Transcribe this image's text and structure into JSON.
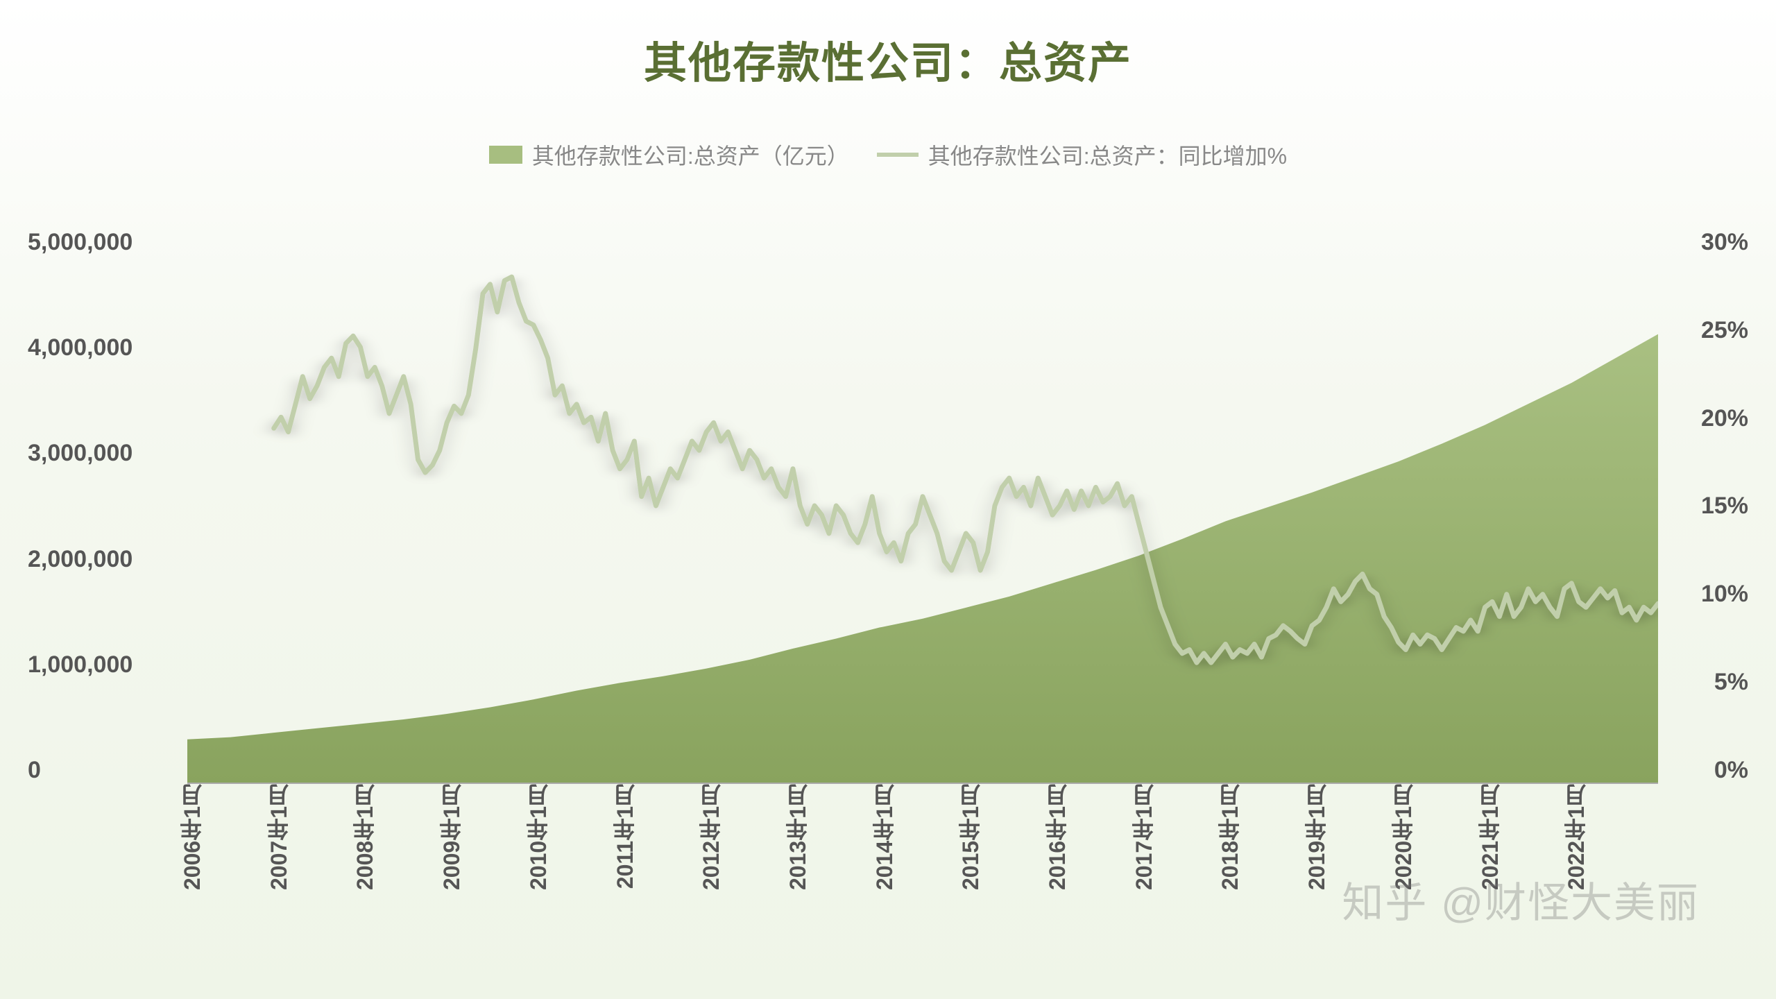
{
  "title": "其他存款性公司：总资产",
  "title_fontsize": 62,
  "legend": {
    "area_label": "其他存款性公司:总资产（亿元）",
    "line_label": "其他存款性公司:总资产：同比增加%",
    "fontsize": 32
  },
  "watermark": "知乎 @财怪大美丽",
  "chart": {
    "type": "area+line",
    "background_gradient_top": "#ffffff",
    "background_gradient_bottom": "#eff5e8",
    "area_color": "#93ae6a",
    "area_gradient_top": "#a9c082",
    "area_gradient_bottom": "#89a35e",
    "line_color": "#c1cfab",
    "line_width": 7,
    "tick_color": "#555555",
    "tick_fontsize": 34,
    "x_tick_fontsize": 32,
    "x_labels": [
      "2006年1月",
      "2007年1月",
      "2008年1月",
      "2009年1月",
      "2010年1月",
      "2011年1月",
      "2012年1月",
      "2013年1月",
      "2014年1月",
      "2015年1月",
      "2016年1月",
      "2017年1月",
      "2018年1月",
      "2019年1月",
      "2020年1月",
      "2021年1月",
      "2022年1月"
    ],
    "x_domain": [
      0,
      204
    ],
    "y_left": {
      "min": 0,
      "max": 5000000,
      "ticks": [
        "5,000,000",
        "4,000,000",
        "3,000,000",
        "2,000,000",
        "1,000,000",
        "0"
      ]
    },
    "y_right": {
      "min": 0,
      "max": 30,
      "ticks": [
        "30%",
        "25%",
        "20%",
        "15%",
        "10%",
        "5%",
        "0%"
      ]
    },
    "area_series": [
      [
        0,
        390000
      ],
      [
        6,
        410000
      ],
      [
        12,
        450000
      ],
      [
        18,
        490000
      ],
      [
        24,
        530000
      ],
      [
        30,
        570000
      ],
      [
        36,
        620000
      ],
      [
        42,
        680000
      ],
      [
        48,
        750000
      ],
      [
        54,
        830000
      ],
      [
        60,
        900000
      ],
      [
        66,
        960000
      ],
      [
        72,
        1030000
      ],
      [
        78,
        1110000
      ],
      [
        84,
        1210000
      ],
      [
        90,
        1300000
      ],
      [
        96,
        1400000
      ],
      [
        102,
        1480000
      ],
      [
        108,
        1580000
      ],
      [
        114,
        1680000
      ],
      [
        120,
        1800000
      ],
      [
        126,
        1920000
      ],
      [
        132,
        2050000
      ],
      [
        138,
        2200000
      ],
      [
        141,
        2280000
      ],
      [
        144,
        2360000
      ],
      [
        150,
        2490000
      ],
      [
        156,
        2620000
      ],
      [
        162,
        2760000
      ],
      [
        168,
        2900000
      ],
      [
        174,
        3060000
      ],
      [
        180,
        3230000
      ],
      [
        186,
        3420000
      ],
      [
        192,
        3610000
      ],
      [
        198,
        3830000
      ],
      [
        204,
        4050000
      ]
    ],
    "line_series": [
      [
        12,
        19.2
      ],
      [
        13,
        19.8
      ],
      [
        14,
        19.0
      ],
      [
        15,
        20.5
      ],
      [
        16,
        22.0
      ],
      [
        17,
        20.8
      ],
      [
        18,
        21.5
      ],
      [
        19,
        22.5
      ],
      [
        20,
        23.0
      ],
      [
        21,
        22.0
      ],
      [
        22,
        23.8
      ],
      [
        23,
        24.2
      ],
      [
        24,
        23.6
      ],
      [
        25,
        22.0
      ],
      [
        26,
        22.5
      ],
      [
        27,
        21.5
      ],
      [
        28,
        20.0
      ],
      [
        29,
        21.0
      ],
      [
        30,
        22.0
      ],
      [
        31,
        20.5
      ],
      [
        32,
        17.5
      ],
      [
        33,
        16.8
      ],
      [
        34,
        17.2
      ],
      [
        35,
        18.0
      ],
      [
        36,
        19.5
      ],
      [
        37,
        20.4
      ],
      [
        38,
        20.0
      ],
      [
        39,
        21.0
      ],
      [
        40,
        23.5
      ],
      [
        41,
        26.5
      ],
      [
        42,
        27.0
      ],
      [
        43,
        25.5
      ],
      [
        44,
        27.2
      ],
      [
        45,
        27.4
      ],
      [
        46,
        26.0
      ],
      [
        47,
        25.0
      ],
      [
        48,
        24.8
      ],
      [
        49,
        24.0
      ],
      [
        50,
        23.0
      ],
      [
        51,
        21.0
      ],
      [
        52,
        21.5
      ],
      [
        53,
        20.0
      ],
      [
        54,
        20.5
      ],
      [
        55,
        19.5
      ],
      [
        56,
        19.8
      ],
      [
        57,
        18.5
      ],
      [
        58,
        20.0
      ],
      [
        59,
        18.0
      ],
      [
        60,
        17.0
      ],
      [
        61,
        17.5
      ],
      [
        62,
        18.5
      ],
      [
        63,
        15.5
      ],
      [
        64,
        16.5
      ],
      [
        65,
        15.0
      ],
      [
        66,
        16.0
      ],
      [
        67,
        17.0
      ],
      [
        68,
        16.5
      ],
      [
        69,
        17.5
      ],
      [
        70,
        18.5
      ],
      [
        71,
        18.0
      ],
      [
        72,
        19.0
      ],
      [
        73,
        19.5
      ],
      [
        74,
        18.5
      ],
      [
        75,
        19.0
      ],
      [
        76,
        18.0
      ],
      [
        77,
        17.0
      ],
      [
        78,
        18.0
      ],
      [
        79,
        17.5
      ],
      [
        80,
        16.5
      ],
      [
        81,
        17.0
      ],
      [
        82,
        16.0
      ],
      [
        83,
        15.5
      ],
      [
        84,
        17.0
      ],
      [
        85,
        15.0
      ],
      [
        86,
        14.0
      ],
      [
        87,
        15.0
      ],
      [
        88,
        14.5
      ],
      [
        89,
        13.5
      ],
      [
        90,
        15.0
      ],
      [
        91,
        14.5
      ],
      [
        92,
        13.5
      ],
      [
        93,
        13.0
      ],
      [
        94,
        14.0
      ],
      [
        95,
        15.5
      ],
      [
        96,
        13.5
      ],
      [
        97,
        12.5
      ],
      [
        98,
        13.0
      ],
      [
        99,
        12.0
      ],
      [
        100,
        13.5
      ],
      [
        101,
        14.0
      ],
      [
        102,
        15.5
      ],
      [
        103,
        14.5
      ],
      [
        104,
        13.5
      ],
      [
        105,
        12.0
      ],
      [
        106,
        11.5
      ],
      [
        107,
        12.5
      ],
      [
        108,
        13.5
      ],
      [
        109,
        13.0
      ],
      [
        110,
        11.5
      ],
      [
        111,
        12.5
      ],
      [
        112,
        15.0
      ],
      [
        113,
        16.0
      ],
      [
        114,
        16.5
      ],
      [
        115,
        15.5
      ],
      [
        116,
        16.0
      ],
      [
        117,
        15.0
      ],
      [
        118,
        16.5
      ],
      [
        119,
        15.5
      ],
      [
        120,
        14.5
      ],
      [
        121,
        15.0
      ],
      [
        122,
        15.8
      ],
      [
        123,
        14.8
      ],
      [
        124,
        15.8
      ],
      [
        125,
        15.0
      ],
      [
        126,
        16.0
      ],
      [
        127,
        15.2
      ],
      [
        128,
        15.5
      ],
      [
        129,
        16.2
      ],
      [
        130,
        15.0
      ],
      [
        131,
        15.5
      ],
      [
        132,
        14.0
      ],
      [
        133,
        12.5
      ],
      [
        134,
        11.0
      ],
      [
        135,
        9.5
      ],
      [
        136,
        8.5
      ],
      [
        137,
        7.5
      ],
      [
        138,
        7.0
      ],
      [
        139,
        7.2
      ],
      [
        140,
        6.5
      ],
      [
        141,
        7.0
      ],
      [
        142,
        6.5
      ],
      [
        143,
        7.0
      ],
      [
        144,
        7.5
      ],
      [
        145,
        6.8
      ],
      [
        146,
        7.2
      ],
      [
        147,
        7.0
      ],
      [
        148,
        7.5
      ],
      [
        149,
        6.8
      ],
      [
        150,
        7.8
      ],
      [
        151,
        8.0
      ],
      [
        152,
        8.5
      ],
      [
        153,
        8.2
      ],
      [
        154,
        7.8
      ],
      [
        155,
        7.5
      ],
      [
        156,
        8.5
      ],
      [
        157,
        8.8
      ],
      [
        158,
        9.5
      ],
      [
        159,
        10.5
      ],
      [
        160,
        9.8
      ],
      [
        161,
        10.2
      ],
      [
        162,
        10.9
      ],
      [
        163,
        11.3
      ],
      [
        164,
        10.5
      ],
      [
        165,
        10.2
      ],
      [
        166,
        9.0
      ],
      [
        167,
        8.4
      ],
      [
        168,
        7.6
      ],
      [
        169,
        7.2
      ],
      [
        170,
        8.0
      ],
      [
        171,
        7.5
      ],
      [
        172,
        8.0
      ],
      [
        173,
        7.8
      ],
      [
        174,
        7.2
      ],
      [
        175,
        7.8
      ],
      [
        176,
        8.4
      ],
      [
        177,
        8.2
      ],
      [
        178,
        8.8
      ],
      [
        179,
        8.2
      ],
      [
        180,
        9.5
      ],
      [
        181,
        9.8
      ],
      [
        182,
        9.0
      ],
      [
        183,
        10.2
      ],
      [
        184,
        9.0
      ],
      [
        185,
        9.5
      ],
      [
        186,
        10.5
      ],
      [
        187,
        9.8
      ],
      [
        188,
        10.2
      ],
      [
        189,
        9.5
      ],
      [
        190,
        9.0
      ],
      [
        191,
        10.5
      ],
      [
        192,
        10.8
      ],
      [
        193,
        9.8
      ],
      [
        194,
        9.5
      ],
      [
        195,
        10.0
      ],
      [
        196,
        10.5
      ],
      [
        197,
        10.0
      ],
      [
        198,
        10.4
      ],
      [
        199,
        9.2
      ],
      [
        200,
        9.5
      ],
      [
        201,
        8.8
      ],
      [
        202,
        9.5
      ],
      [
        203,
        9.2
      ],
      [
        204,
        9.7
      ]
    ]
  }
}
